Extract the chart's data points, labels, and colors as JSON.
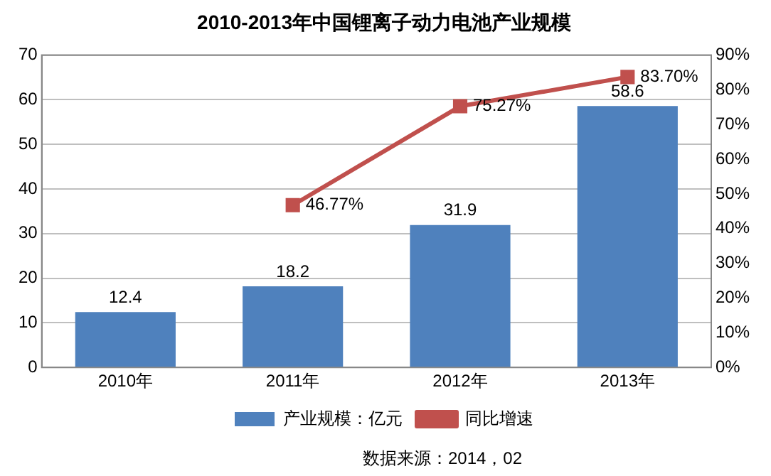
{
  "chart_data": {
    "type": "bar",
    "title": "2010-2013年中国锂离子动力电池产业规模",
    "categories": [
      "2010年",
      "2011年",
      "2012年",
      "2013年"
    ],
    "series": [
      {
        "name": "产业规模：亿元",
        "color": "#4f81bd",
        "values": [
          12.4,
          18.2,
          31.9,
          58.6
        ],
        "value_labels": [
          "12.4",
          "18.2",
          "31.9",
          "58.6"
        ]
      },
      {
        "name": "同比增速",
        "type": "line",
        "axis": "y2",
        "color": "#c0504d",
        "values": [
          null,
          46.77,
          75.27,
          83.7
        ],
        "value_labels": [
          null,
          "46.77%",
          "75.27%",
          "83.70%"
        ]
      }
    ],
    "ylim": [
      0,
      70
    ],
    "yticks": [
      0,
      10,
      20,
      30,
      40,
      50,
      60,
      70
    ],
    "y2lim": [
      0,
      90
    ],
    "y2ticks": [
      {
        "value": 0,
        "label": "0%"
      },
      {
        "value": 10,
        "label": "10%"
      },
      {
        "value": 20,
        "label": "20%"
      },
      {
        "value": 30,
        "label": "30%"
      },
      {
        "value": 40,
        "label": "40%"
      },
      {
        "value": 50,
        "label": "50%"
      },
      {
        "value": 60,
        "label": "60%"
      },
      {
        "value": 70,
        "label": "70%"
      },
      {
        "value": 80,
        "label": "80%"
      },
      {
        "value": 90,
        "label": "90%"
      }
    ],
    "grid": "y",
    "legend": "bottom",
    "marker": "square",
    "line_style": "solid",
    "annotations": [
      "数据来源：2014，02"
    ]
  }
}
